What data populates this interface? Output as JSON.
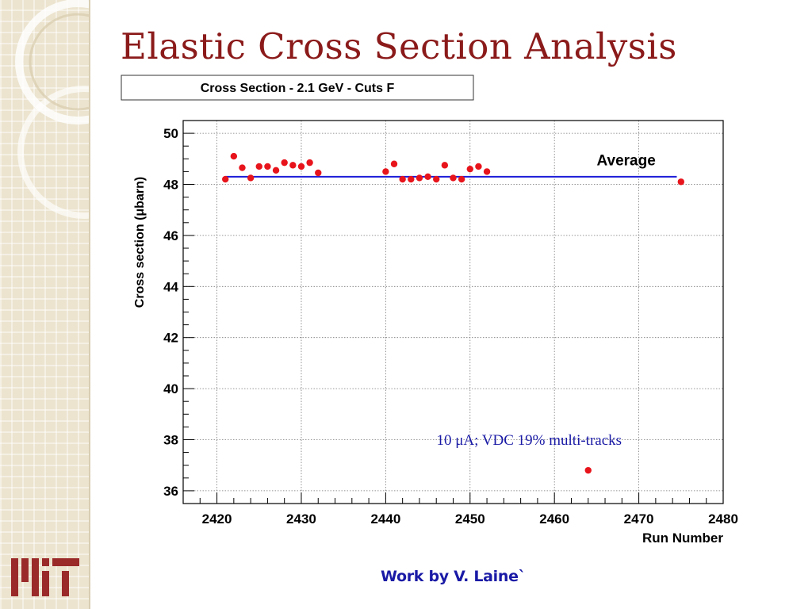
{
  "slide": {
    "title": "Elastic Cross Section Analysis",
    "credit": "Work by V. Laine`"
  },
  "colors": {
    "title": "#8b1a1a",
    "points": "#e8141c",
    "average_line": "#1b1bd8",
    "annotation": "#1a1aa6",
    "credit": "#1a1aa6",
    "sidebar": "#ece4cf"
  },
  "chart_data": {
    "type": "scatter",
    "title": "Cross Section - 2.1 GeV - Cuts F",
    "xlabel": "Run Number",
    "ylabel": "Cross section (μbarn)",
    "xlim": [
      2416,
      2480
    ],
    "ylim": [
      35.5,
      50.5
    ],
    "x_ticks": [
      2420,
      2430,
      2440,
      2450,
      2460,
      2470,
      2480
    ],
    "y_ticks": [
      36,
      38,
      40,
      42,
      44,
      46,
      48,
      50
    ],
    "grid": true,
    "series": [
      {
        "x": [
          2421,
          2422,
          2423,
          2424,
          2425,
          2426,
          2427,
          2428,
          2429,
          2430,
          2431,
          2432,
          2440,
          2441,
          2442,
          2443,
          2444,
          2445,
          2446,
          2447,
          2448,
          2449,
          2450,
          2451,
          2452,
          2464,
          2475
        ],
        "y": [
          48.2,
          49.1,
          48.65,
          48.25,
          48.7,
          48.7,
          48.55,
          48.85,
          48.75,
          48.7,
          48.85,
          48.45,
          48.5,
          48.8,
          48.2,
          48.2,
          48.25,
          48.3,
          48.2,
          48.75,
          48.25,
          48.2,
          48.6,
          48.7,
          48.5,
          36.8,
          48.1
        ]
      }
    ],
    "reference_line": {
      "label": "Average",
      "y": 48.3,
      "x_range": [
        2421,
        2474.5
      ]
    },
    "annotations": [
      {
        "text": "10 μA; VDC 19% multi-tracks",
        "x": 2457,
        "y": 37.8
      },
      {
        "text": "Average",
        "x": 2468.5,
        "y": 49.0
      }
    ]
  }
}
